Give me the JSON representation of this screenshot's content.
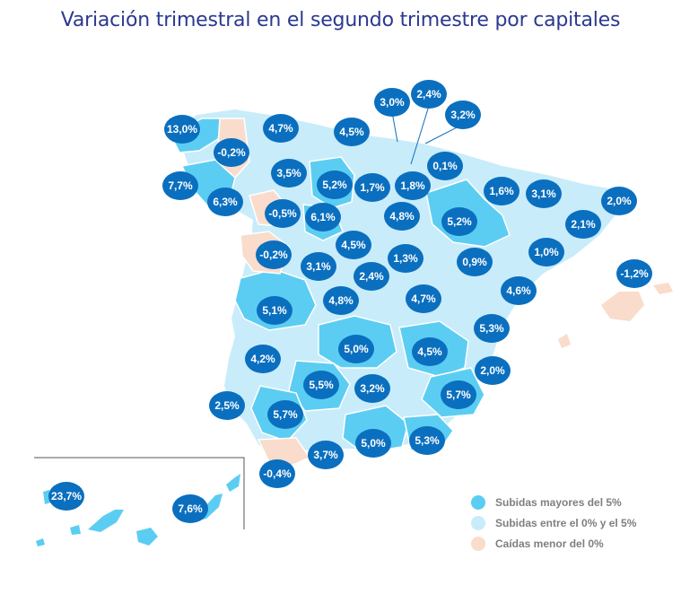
{
  "title": "Variación trimestral en el segundo trimestre por capitales",
  "colors": {
    "high": "#5ccdf2",
    "mid": "#c8ecfa",
    "fall": "#f9dccb",
    "bubble": "#0b6fbf",
    "border": "#ffffff",
    "inset_frame": "#555555"
  },
  "legend": [
    {
      "label": "Subidas mayores del 5%",
      "color": "#5ccdf2"
    },
    {
      "label": "Subidas entre el 0% y el 5%",
      "color": "#c8ecfa"
    },
    {
      "label": "Caídas menor del 0%",
      "color": "#f9dccb"
    }
  ],
  "bubbles": [
    {
      "value": "13,0%",
      "category": "high"
    },
    {
      "value": "4,7%",
      "category": "mid"
    },
    {
      "value": "4,5%",
      "category": "mid"
    },
    {
      "value": "3,0%",
      "category": "mid"
    },
    {
      "value": "2,4%",
      "category": "mid"
    },
    {
      "value": "3,2%",
      "category": "mid"
    },
    {
      "value": "-0,2%",
      "category": "fall"
    },
    {
      "value": "0,1%",
      "category": "mid"
    },
    {
      "value": "3,5%",
      "category": "mid"
    },
    {
      "value": "7,7%",
      "category": "high"
    },
    {
      "value": "5,2%",
      "category": "high"
    },
    {
      "value": "1,7%",
      "category": "mid"
    },
    {
      "value": "1,8%",
      "category": "mid"
    },
    {
      "value": "1,6%",
      "category": "mid"
    },
    {
      "value": "3,1%",
      "category": "mid"
    },
    {
      "value": "2,0%",
      "category": "mid"
    },
    {
      "value": "6,3%",
      "category": "high"
    },
    {
      "value": "-0,5%",
      "category": "fall"
    },
    {
      "value": "6,1%",
      "category": "high"
    },
    {
      "value": "4,8%",
      "category": "mid"
    },
    {
      "value": "5,2%",
      "category": "high"
    },
    {
      "value": "2,1%",
      "category": "mid"
    },
    {
      "value": "-0,2%",
      "category": "fall"
    },
    {
      "value": "4,5%",
      "category": "mid"
    },
    {
      "value": "3,1%",
      "category": "mid"
    },
    {
      "value": "1,3%",
      "category": "mid"
    },
    {
      "value": "0,9%",
      "category": "mid"
    },
    {
      "value": "1,0%",
      "category": "mid"
    },
    {
      "value": "-1,2%",
      "category": "fall"
    },
    {
      "value": "2,4%",
      "category": "mid"
    },
    {
      "value": "5,1%",
      "category": "high"
    },
    {
      "value": "4,8%",
      "category": "mid"
    },
    {
      "value": "4,7%",
      "category": "mid"
    },
    {
      "value": "4,6%",
      "category": "mid"
    },
    {
      "value": "5,3%",
      "category": "high"
    },
    {
      "value": "5,0%",
      "category": "high"
    },
    {
      "value": "4,5%",
      "category": "mid"
    },
    {
      "value": "4,2%",
      "category": "mid"
    },
    {
      "value": "2,0%",
      "category": "mid"
    },
    {
      "value": "5,5%",
      "category": "high"
    },
    {
      "value": "3,2%",
      "category": "mid"
    },
    {
      "value": "5,7%",
      "category": "high"
    },
    {
      "value": "2,5%",
      "category": "mid"
    },
    {
      "value": "5,7%",
      "category": "high"
    },
    {
      "value": "5,0%",
      "category": "high"
    },
    {
      "value": "5,3%",
      "category": "high"
    },
    {
      "value": "3,7%",
      "category": "mid"
    },
    {
      "value": "-0,4%",
      "category": "fall"
    },
    {
      "value": "23,7%",
      "category": "high"
    },
    {
      "value": "7,6%",
      "category": "high"
    }
  ]
}
